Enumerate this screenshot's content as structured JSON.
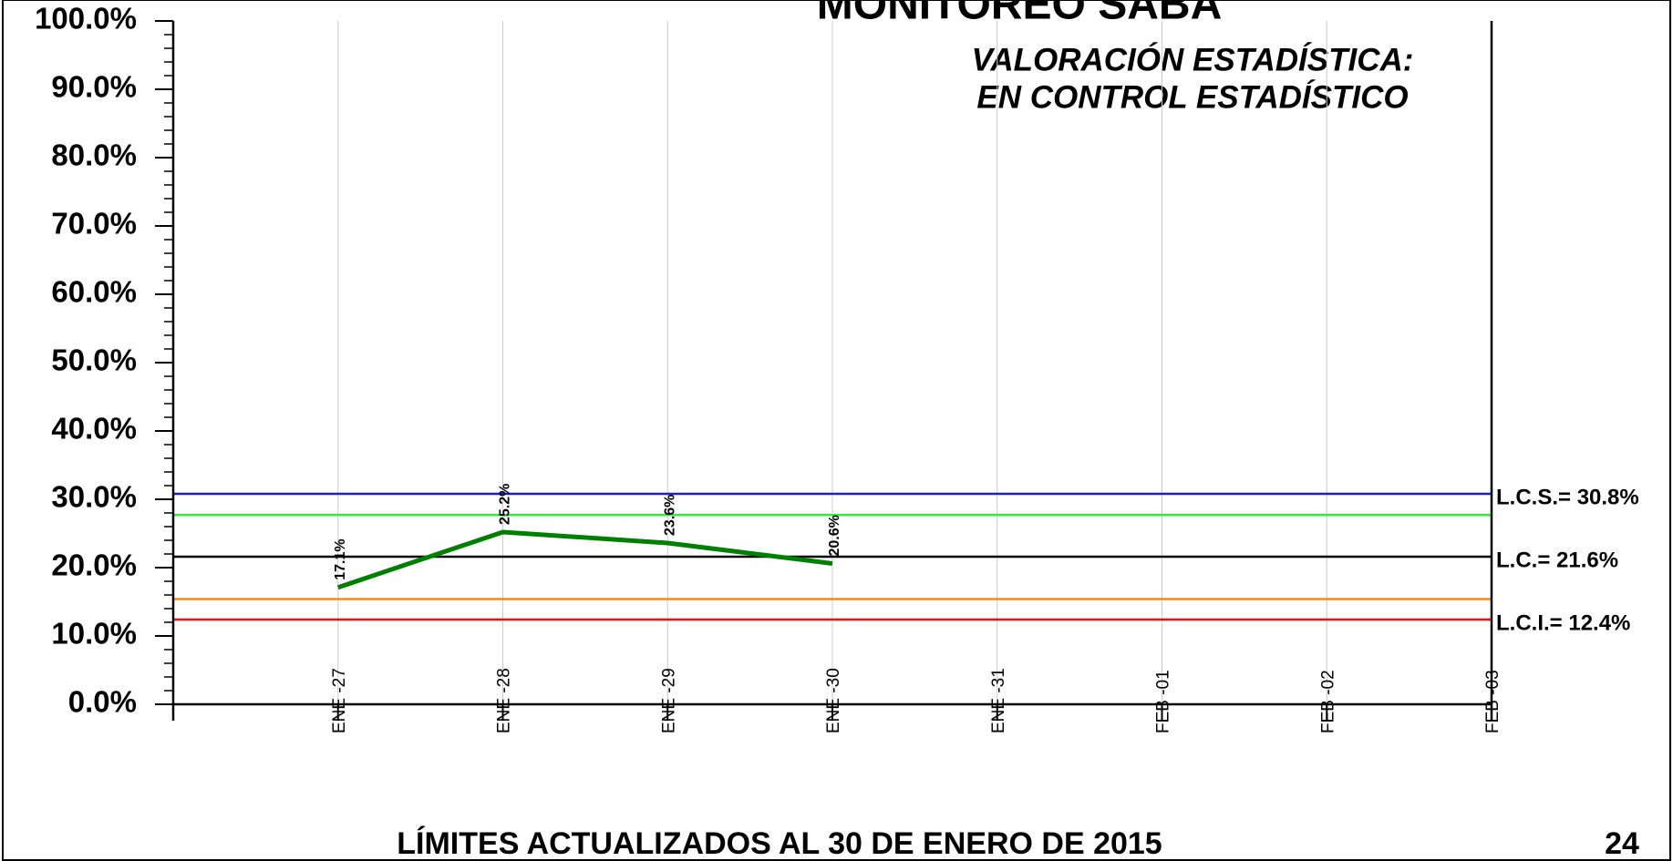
{
  "chart_data": {
    "type": "line",
    "title": "MONITOREO SABA",
    "annotation": [
      "VALORACIÓN ESTADÍSTICA:",
      "EN CONTROL ESTADÍSTICO"
    ],
    "footer": "LÍMITES ACTUALIZADOS  AL 30 DE ENERO DE 2015",
    "page_number": "24",
    "categories": [
      "ENE -27",
      "ENE -28",
      "ENE -29",
      "ENE -30",
      "ENE -31",
      "FEB -01",
      "FEB -02",
      "FEB -03"
    ],
    "series": [
      {
        "color": "#008000",
        "values": [
          17.1,
          25.2,
          23.6,
          20.6,
          null,
          null,
          null,
          null
        ],
        "value_labels": [
          "17.1%",
          "25.2%",
          "23.6%",
          "20.6%",
          null,
          null,
          null,
          null
        ]
      }
    ],
    "reference_lines": [
      {
        "value": 30.8,
        "color": "#1f1fcc",
        "label": "L.C.S.= 30.8%"
      },
      {
        "value": 27.7,
        "color": "#33ee33"
      },
      {
        "value": 21.6,
        "color": "#000000",
        "label": "L.C.= 21.6%"
      },
      {
        "value": 15.4,
        "color": "#f08c1e"
      },
      {
        "value": 12.4,
        "color": "#ee1111",
        "label": "L.C.I.= 12.4%"
      }
    ],
    "ylim": [
      0,
      100
    ],
    "yticks": [
      {
        "value": 0,
        "label": "0.0%"
      },
      {
        "value": 10,
        "label": "10.0%"
      },
      {
        "value": 20,
        "label": "20.0%"
      },
      {
        "value": 30,
        "label": "30.0%"
      },
      {
        "value": 40,
        "label": "40.0%"
      },
      {
        "value": 50,
        "label": "50.0%"
      },
      {
        "value": 60,
        "label": "60.0%"
      },
      {
        "value": 70,
        "label": "70.0%"
      },
      {
        "value": 80,
        "label": "80.0%"
      },
      {
        "value": 90,
        "label": "90.0%"
      },
      {
        "value": 100,
        "label": "100.0%"
      }
    ],
    "grid": true
  }
}
